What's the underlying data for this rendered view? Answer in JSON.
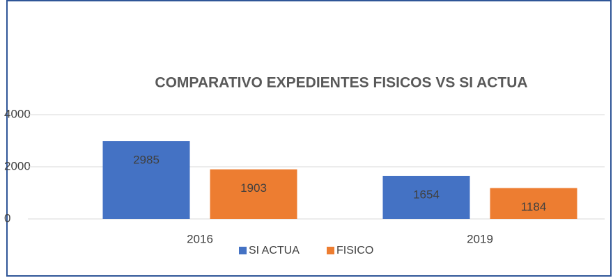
{
  "chart_data": {
    "type": "bar",
    "title": "COMPARATIVO EXPEDIENTES FISICOS VS SI ACTUA",
    "categories": [
      "2016",
      "2019"
    ],
    "series": [
      {
        "name": "SI ACTUA",
        "color": "#4472c4",
        "values": [
          2985,
          1654
        ]
      },
      {
        "name": "FISICO",
        "color": "#ed7d31",
        "values": [
          1903,
          1184
        ]
      }
    ],
    "ylim": [
      0,
      4000
    ],
    "yticks": [
      0,
      2000,
      4000
    ],
    "grid": true,
    "legend": "bottom"
  }
}
